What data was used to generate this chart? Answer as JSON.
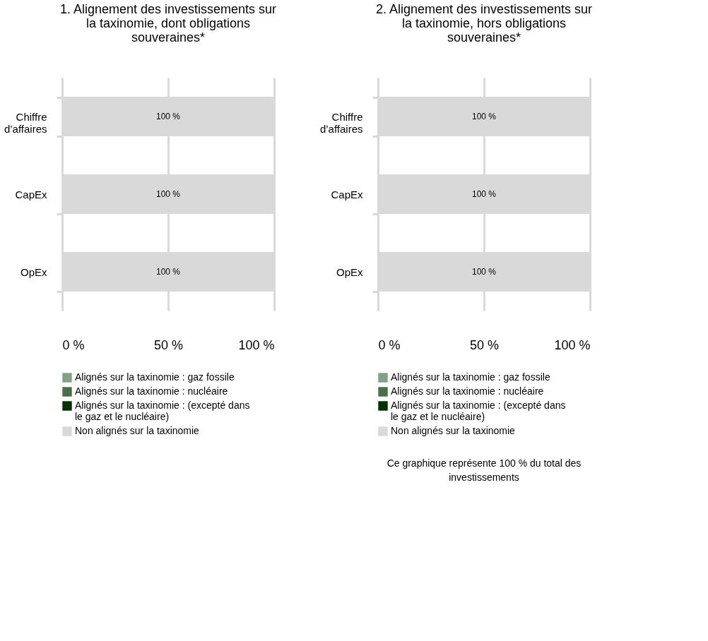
{
  "chart_data": [
    {
      "type": "bar",
      "orientation": "horizontal",
      "title": "1. Alignement des investissements sur la taxinomie, dont obligations souveraines*",
      "categories": [
        "Chiffre d’affaires",
        "CapEx",
        "OpEx"
      ],
      "xlim": [
        0,
        100
      ],
      "xticks": [
        {
          "value": 0,
          "label": "0 %"
        },
        {
          "value": 50,
          "label": "50 %"
        },
        {
          "value": 100,
          "label": "100 %"
        }
      ],
      "grid": "x",
      "legend": "bottom",
      "series": [
        {
          "name": "Alignés sur la taxinomie : gaz fossile",
          "color": "#85a185",
          "values": [
            0,
            0,
            0
          ]
        },
        {
          "name": "Alignés sur la taxinomie : nucléaire",
          "color": "#4a7049",
          "values": [
            0,
            0,
            0
          ]
        },
        {
          "name": "Alignés sur la taxinomie : (excepté dans le gaz et le nucléaire)",
          "color": "#003300",
          "values": [
            0,
            0,
            0
          ]
        },
        {
          "name": "Non alignés sur la taxinomie",
          "color": "#d9d9d9",
          "values": [
            100,
            100,
            100
          ],
          "value_labels": [
            "100 %",
            "100 %",
            "100 %"
          ]
        }
      ]
    },
    {
      "type": "bar",
      "orientation": "horizontal",
      "title": "2. Alignement des investissements sur la taxinomie, hors obligations souveraines*",
      "categories": [
        "Chiffre d’affaires",
        "CapEx",
        "OpEx"
      ],
      "xlim": [
        0,
        100
      ],
      "xticks": [
        {
          "value": 0,
          "label": "0 %"
        },
        {
          "value": 50,
          "label": "50 %"
        },
        {
          "value": 100,
          "label": "100 %"
        }
      ],
      "grid": "x",
      "legend": "bottom",
      "annotations": [
        "Ce graphique représente 100 % du total des investissements"
      ],
      "series": [
        {
          "name": "Alignés sur la taxinomie : gaz fossile",
          "color": "#85a185",
          "values": [
            0,
            0,
            0
          ]
        },
        {
          "name": "Alignés sur la taxinomie : nucléaire",
          "color": "#4a7049",
          "values": [
            0,
            0,
            0
          ]
        },
        {
          "name": "Alignés sur la taxinomie : (excepté dans le gaz et le nucléaire)",
          "color": "#003300",
          "values": [
            0,
            0,
            0
          ]
        },
        {
          "name": "Non alignés sur la taxinomie",
          "color": "#d9d9d9",
          "values": [
            100,
            100,
            100
          ],
          "value_labels": [
            "100 %",
            "100 %",
            "100 %"
          ]
        }
      ]
    }
  ]
}
